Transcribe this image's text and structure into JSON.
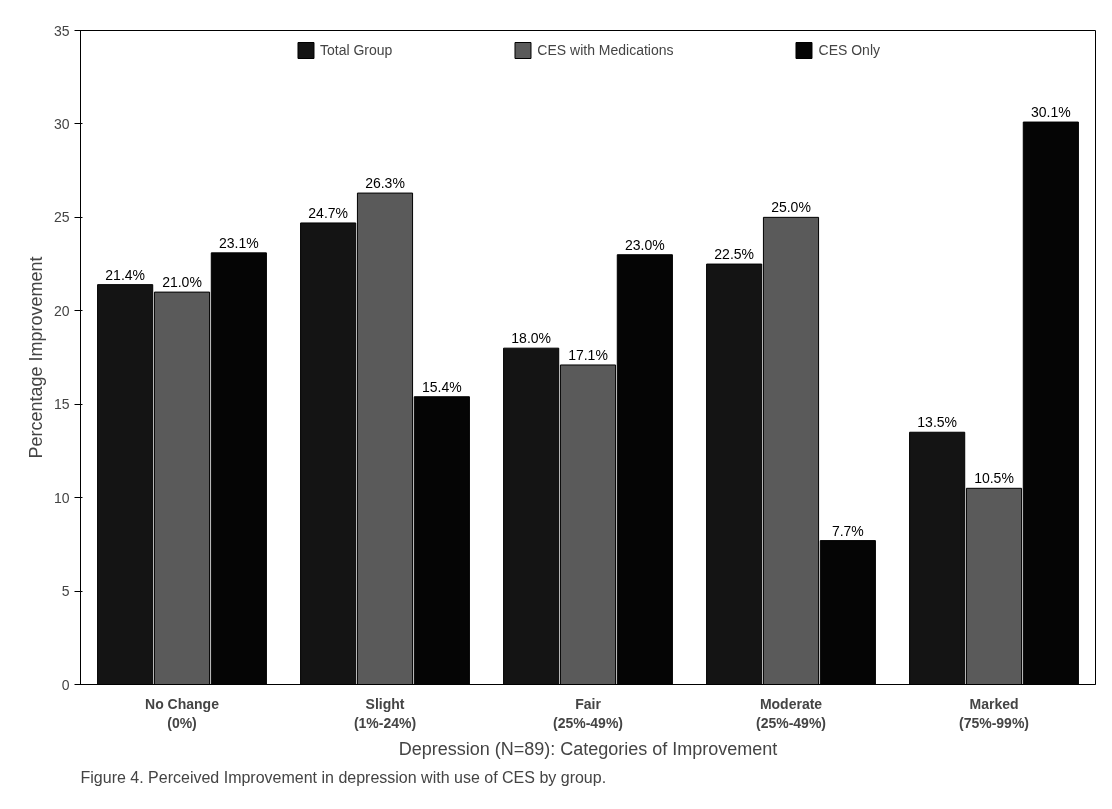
{
  "chart_data": {
    "type": "bar",
    "xlabel": "Depression (N=89): Categories of Improvement",
    "ylabel": "Percentage Improvement",
    "categories": [
      "No Change\n(0%)",
      "Slight\n(1%-24%)",
      "Fair\n(25%-49%)",
      "Moderate\n(25%-49%)",
      "Marked\n(75%-99%)"
    ],
    "series": [
      {
        "name": "Total Group",
        "color": "#141414",
        "values": [
          21.4,
          24.7,
          18.0,
          22.5,
          13.5
        ],
        "value_labels": [
          "21.4%",
          "24.7%",
          "18.0%",
          "22.5%",
          "13.5%"
        ]
      },
      {
        "name": "CES with Medications",
        "color": "#5a5a5a",
        "values": [
          21.0,
          26.3,
          17.1,
          25.0,
          10.5
        ],
        "value_labels": [
          "21.0%",
          "26.3%",
          "17.1%",
          "25.0%",
          "10.5%"
        ]
      },
      {
        "name": "CES Only",
        "color": "#050505",
        "values": [
          23.1,
          15.4,
          23.0,
          7.7,
          30.1
        ],
        "value_labels": [
          "23.1%",
          "15.4%",
          "23.0%",
          "7.7%",
          "30.1%"
        ]
      }
    ],
    "ylim": [
      0,
      35
    ],
    "yticks": [
      0,
      5,
      10,
      15,
      20,
      25,
      30,
      35
    ],
    "grid": false,
    "legend": "top",
    "annotations": [
      "Figure 4. Perceived Improvement in depression with use of CES by group."
    ]
  }
}
